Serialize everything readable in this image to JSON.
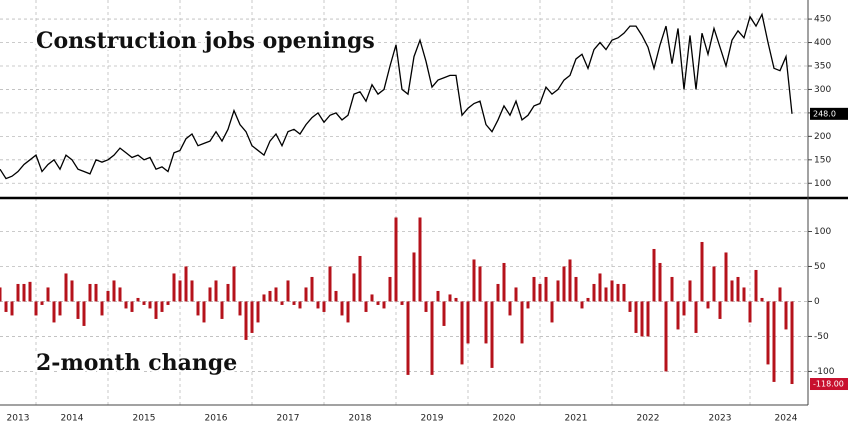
{
  "chart_data": [
    {
      "type": "line",
      "title": "Construction jobs openings",
      "color": "#000000",
      "ylim": [
        75,
        480
      ],
      "yticks": [
        100,
        150,
        200,
        250,
        300,
        350,
        400,
        450
      ],
      "grid": true,
      "label_box_color": "#000000",
      "values": [
        130,
        110,
        115,
        125,
        140,
        150,
        160,
        125,
        140,
        150,
        130,
        160,
        150,
        130,
        125,
        120,
        150,
        145,
        150,
        160,
        175,
        165,
        155,
        160,
        150,
        155,
        130,
        135,
        125,
        165,
        170,
        195,
        205,
        180,
        185,
        190,
        210,
        190,
        215,
        255,
        225,
        210,
        180,
        170,
        160,
        190,
        205,
        180,
        210,
        215,
        205,
        225,
        240,
        250,
        230,
        245,
        250,
        235,
        245,
        290,
        295,
        275,
        310,
        290,
        300,
        350,
        395,
        300,
        290,
        370,
        405,
        360,
        305,
        320,
        325,
        330,
        330,
        245,
        260,
        270,
        275,
        225,
        210,
        235,
        265,
        245,
        275,
        235,
        245,
        265,
        270,
        305,
        290,
        300,
        320,
        330,
        365,
        375,
        345,
        385,
        400,
        385,
        405,
        410,
        420,
        435,
        435,
        415,
        390,
        345,
        395,
        435,
        355,
        430,
        300,
        415,
        300,
        420,
        375,
        430,
        390,
        350,
        405,
        425,
        410,
        455,
        435,
        460,
        400,
        345,
        340,
        370,
        248
      ],
      "value_labels": [
        null,
        null,
        null,
        null,
        null,
        null,
        null,
        null,
        null,
        null,
        null,
        null,
        null,
        null,
        null,
        null,
        null,
        null,
        null,
        null,
        null,
        null,
        null,
        null,
        null,
        null,
        null,
        null,
        null,
        null,
        null,
        null,
        null,
        null,
        null,
        null,
        null,
        null,
        null,
        null,
        null,
        null,
        null,
        null,
        null,
        null,
        null,
        null,
        null,
        null,
        null,
        null,
        null,
        null,
        null,
        null,
        null,
        null,
        null,
        null,
        null,
        null,
        null,
        null,
        null,
        null,
        null,
        null,
        null,
        null,
        null,
        null,
        null,
        null,
        null,
        null,
        null,
        null,
        null,
        null,
        null,
        null,
        null,
        null,
        null,
        null,
        null,
        null,
        null,
        null,
        null,
        null,
        null,
        null,
        null,
        null,
        null,
        null,
        null,
        null,
        null,
        null,
        null,
        null,
        null,
        null,
        null,
        null,
        null,
        null,
        null,
        null,
        null,
        null,
        null,
        null,
        null,
        null,
        null,
        null,
        null,
        null,
        null,
        null,
        null,
        null,
        null,
        null,
        null,
        null,
        null,
        null,
        "248.0"
      ]
    },
    {
      "type": "bar",
      "title": "2-month change",
      "color": "#b5121b",
      "ylim": [
        -148,
        145
      ],
      "yticks": [
        -100,
        -50,
        0,
        50,
        100
      ],
      "grid": true,
      "label_box_color": "#c8102e",
      "categories": [
        null,
        null,
        null,
        "2013",
        null,
        null,
        null,
        null,
        null,
        null,
        null,
        null,
        "2014",
        null,
        null,
        null,
        null,
        null,
        null,
        null,
        null,
        null,
        null,
        null,
        "2015",
        null,
        null,
        null,
        null,
        null,
        null,
        null,
        null,
        null,
        null,
        null,
        "2016",
        null,
        null,
        null,
        null,
        null,
        null,
        null,
        null,
        null,
        null,
        null,
        "2017",
        null,
        null,
        null,
        null,
        null,
        null,
        null,
        null,
        null,
        null,
        null,
        "2018",
        null,
        null,
        null,
        null,
        null,
        null,
        null,
        null,
        null,
        null,
        null,
        "2019",
        null,
        null,
        null,
        null,
        null,
        null,
        null,
        null,
        null,
        null,
        null,
        "2020",
        null,
        null,
        null,
        null,
        null,
        null,
        null,
        null,
        null,
        null,
        null,
        "2021",
        null,
        null,
        null,
        null,
        null,
        null,
        null,
        null,
        null,
        null,
        null,
        "2022",
        null,
        null,
        null,
        null,
        null,
        null,
        null,
        null,
        null,
        null,
        null,
        "2023",
        null,
        null,
        null,
        null,
        null,
        null,
        null,
        null,
        null,
        null,
        "2024",
        null
      ],
      "values": [
        20,
        -15,
        -20,
        25,
        25,
        28,
        -20,
        -5,
        20,
        -30,
        -20,
        40,
        30,
        -25,
        -35,
        25,
        25,
        -20,
        15,
        30,
        20,
        -10,
        -15,
        5,
        -5,
        -10,
        -25,
        -15,
        -5,
        40,
        30,
        50,
        30,
        -20,
        -30,
        20,
        30,
        -25,
        25,
        50,
        -20,
        -55,
        -45,
        -30,
        10,
        15,
        20,
        -5,
        30,
        -5,
        -10,
        20,
        35,
        -10,
        -15,
        50,
        15,
        -20,
        -30,
        40,
        65,
        -15,
        10,
        -5,
        -10,
        35,
        120,
        -5,
        -105,
        70,
        120,
        -15,
        -105,
        15,
        -35,
        10,
        5,
        -90,
        -60,
        60,
        50,
        -60,
        -95,
        25,
        55,
        -20,
        20,
        -60,
        -10,
        35,
        25,
        35,
        -30,
        30,
        50,
        60,
        35,
        -10,
        5,
        25,
        40,
        20,
        30,
        25,
        25,
        -15,
        -45,
        -50,
        -50,
        75,
        55,
        -100,
        35,
        -40,
        -20,
        30,
        -45,
        85,
        -10,
        50,
        -25,
        70,
        30,
        35,
        20,
        -30,
        45,
        5,
        -90,
        -115,
        20,
        -40,
        -118
      ],
      "value_labels": [
        null,
        null,
        null,
        null,
        null,
        null,
        null,
        null,
        null,
        null,
        null,
        null,
        null,
        null,
        null,
        null,
        null,
        null,
        null,
        null,
        null,
        null,
        null,
        null,
        null,
        null,
        null,
        null,
        null,
        null,
        null,
        null,
        null,
        null,
        null,
        null,
        null,
        null,
        null,
        null,
        null,
        null,
        null,
        null,
        null,
        null,
        null,
        null,
        null,
        null,
        null,
        null,
        null,
        null,
        null,
        null,
        null,
        null,
        null,
        null,
        null,
        null,
        null,
        null,
        null,
        null,
        null,
        null,
        null,
        null,
        null,
        null,
        null,
        null,
        null,
        null,
        null,
        null,
        null,
        null,
        null,
        null,
        null,
        null,
        null,
        null,
        null,
        null,
        null,
        null,
        null,
        null,
        null,
        null,
        null,
        null,
        null,
        null,
        null,
        null,
        null,
        null,
        null,
        null,
        null,
        null,
        null,
        null,
        null,
        null,
        null,
        null,
        null,
        null,
        null,
        null,
        null,
        null,
        null,
        null,
        null,
        null,
        null,
        null,
        null,
        null,
        null,
        null,
        null,
        null,
        null,
        null,
        "-118.00"
      ]
    }
  ]
}
